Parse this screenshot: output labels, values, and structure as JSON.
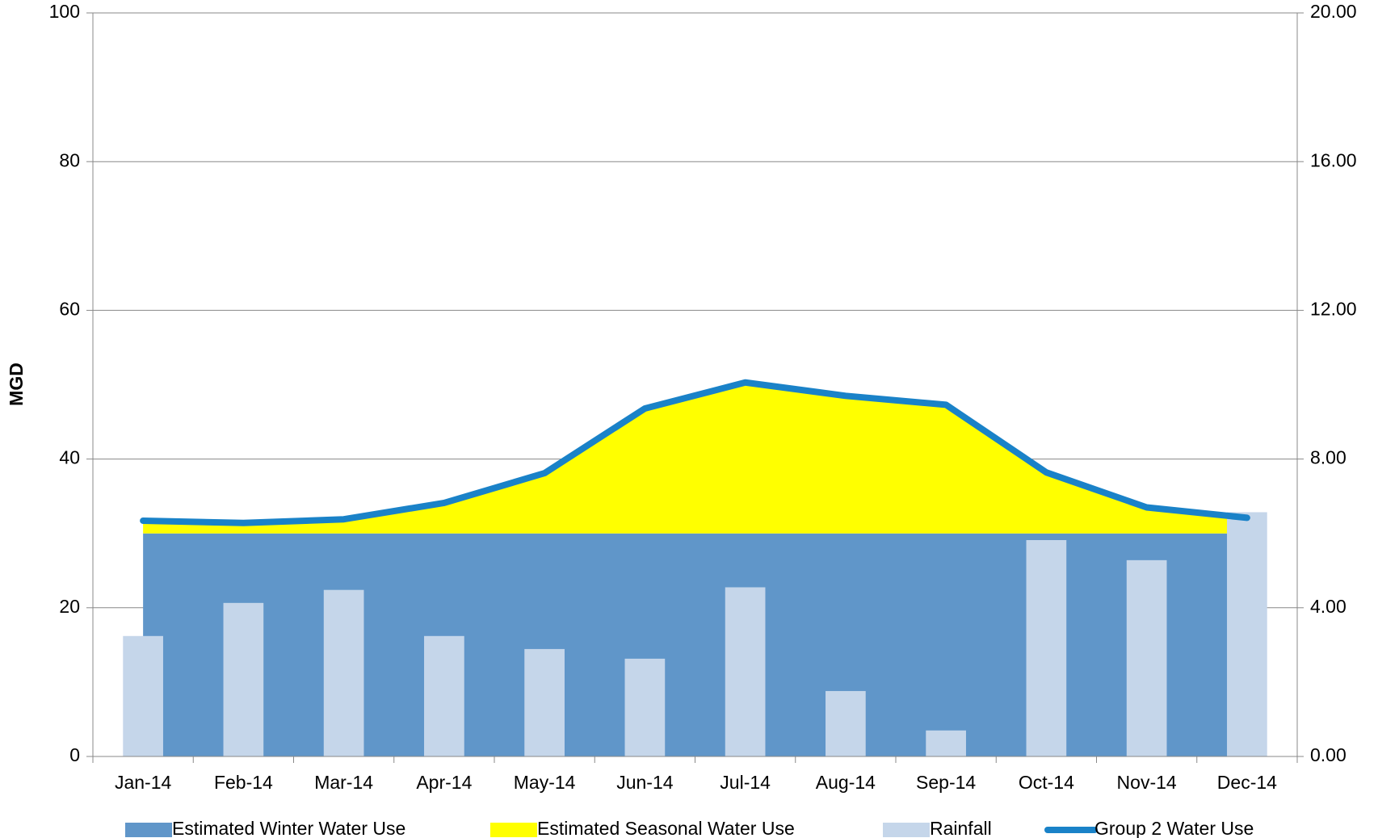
{
  "chart_data": {
    "type": "combo",
    "categories": [
      "Jan-14",
      "Feb-14",
      "Mar-14",
      "Apr-14",
      "May-14",
      "Jun-14",
      "Jul-14",
      "Aug-14",
      "Sep-14",
      "Oct-14",
      "Nov-14",
      "Dec-14"
    ],
    "ylabel": "MGD",
    "ylim": [
      0,
      100
    ],
    "yticks": [
      0,
      20,
      40,
      60,
      80,
      100
    ],
    "y2lim": [
      0,
      20
    ],
    "y2ticks": [
      {
        "value": 0,
        "label": "0.00"
      },
      {
        "value": 4,
        "label": "4.00"
      },
      {
        "value": 8,
        "label": "8.00"
      },
      {
        "value": 12,
        "label": "12.00"
      },
      {
        "value": 16,
        "label": "16.00"
      },
      {
        "value": 20,
        "label": "20.00"
      }
    ],
    "grid": true,
    "legend": "bottom",
    "series": [
      {
        "name": "Estimated Winter Water Use",
        "type": "area",
        "stacked": true,
        "color": "#6096c9",
        "values": [
          30,
          30,
          30,
          30,
          30,
          30,
          30,
          30,
          30,
          30,
          30,
          30
        ]
      },
      {
        "name": "Estimated Seasonal Water Use",
        "type": "area",
        "stacked": true,
        "color": "#ffff00",
        "values": [
          1.7,
          1.4,
          1.9,
          4.1,
          8.1,
          16.8,
          20.3,
          18.5,
          17.3,
          8.2,
          3.5,
          2.1
        ]
      },
      {
        "name": "Rainfall",
        "type": "bar",
        "axis": "y2",
        "color": "#c5d6ea",
        "values": [
          3.24,
          4.13,
          4.48,
          3.24,
          2.89,
          2.63,
          4.55,
          1.76,
          0.7,
          5.82,
          5.28,
          6.57
        ]
      },
      {
        "name": "Group 2 Water Use",
        "type": "line",
        "color": "#1a82c8",
        "values": [
          31.7,
          31.4,
          31.9,
          34.1,
          38.1,
          46.8,
          50.3,
          48.5,
          47.3,
          38.2,
          33.5,
          32.1
        ]
      }
    ]
  }
}
